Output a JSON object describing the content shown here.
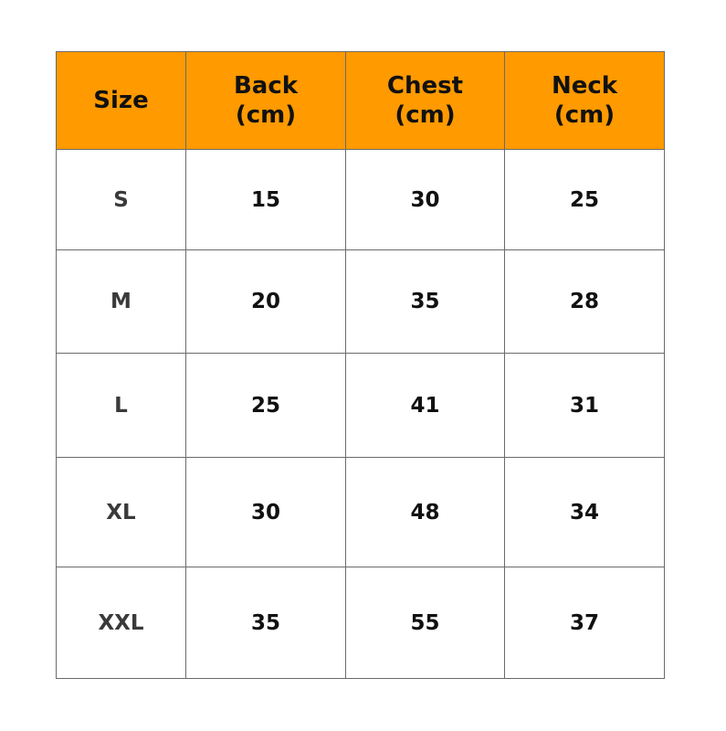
{
  "table": {
    "headers": [
      {
        "line1": "Size",
        "line2": ""
      },
      {
        "line1": "Back",
        "line2": "(cm)"
      },
      {
        "line1": "Chest",
        "line2": "(cm)"
      },
      {
        "line1": "Neck",
        "line2": "(cm)"
      }
    ],
    "rows": [
      [
        "S",
        "15",
        "30",
        "25"
      ],
      [
        "M",
        "20",
        "35",
        "28"
      ],
      [
        "L",
        "25",
        "41",
        "31"
      ],
      [
        "XL",
        "30",
        "48",
        "34"
      ],
      [
        "XXL",
        "35",
        "55",
        "37"
      ]
    ],
    "header_color": "#ff9a00"
  }
}
